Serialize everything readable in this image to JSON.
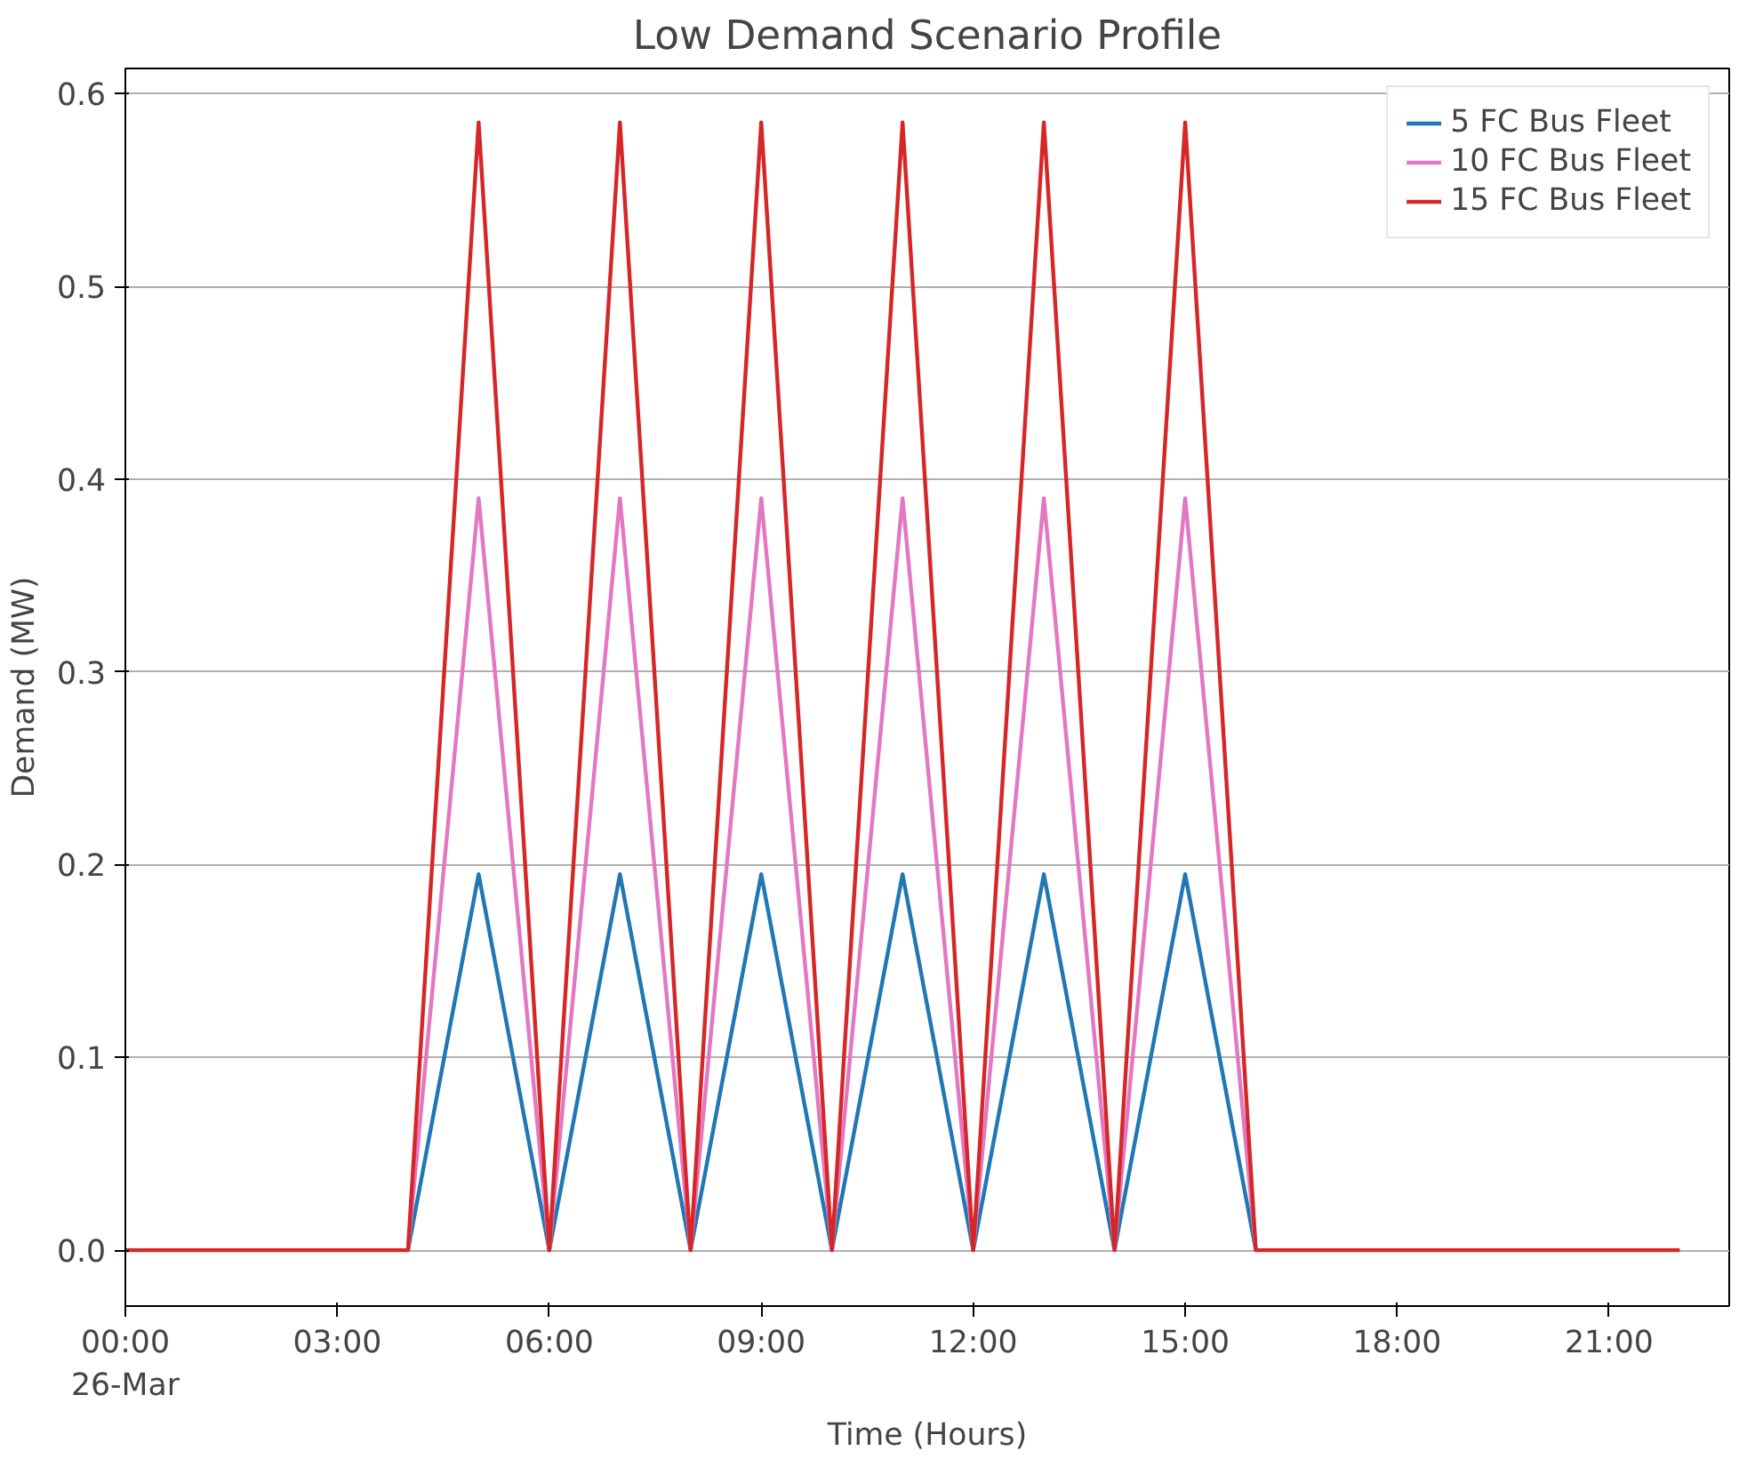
{
  "chart_data": {
    "type": "line",
    "title": "Low Demand Scenario Profile",
    "xlabel": "Time (Hours)",
    "ylabel": "Demand (MW)",
    "x": [
      0,
      1,
      2,
      3,
      4,
      5,
      6,
      7,
      8,
      9,
      10,
      11,
      12,
      13,
      14,
      15,
      16,
      17,
      18,
      19,
      20,
      21,
      22
    ],
    "series": [
      {
        "name": "5 FC Bus Fleet",
        "color": "#1f77b4",
        "values": [
          null,
          null,
          null,
          null,
          0,
          0.195,
          0,
          0.195,
          0,
          0.195,
          0,
          0.195,
          0,
          0.195,
          0,
          0.195,
          0,
          null,
          null,
          null,
          null,
          null,
          null
        ]
      },
      {
        "name": "10 FC Bus Fleet",
        "color": "#e377c2",
        "values": [
          null,
          null,
          null,
          null,
          0,
          0.39,
          0,
          0.39,
          0,
          0.39,
          0,
          0.39,
          0,
          0.39,
          0,
          0.39,
          0,
          null,
          null,
          null,
          null,
          null,
          null
        ]
      },
      {
        "name": "15 FC Bus Fleet",
        "color": "#d62728",
        "values": [
          0,
          0,
          0,
          0,
          0,
          0.585,
          0,
          0.585,
          0,
          0.585,
          0,
          0.585,
          0,
          0.585,
          0,
          0.585,
          0,
          0,
          0,
          0,
          0,
          0,
          0
        ]
      }
    ],
    "xlim": [
      0,
      22.7
    ],
    "ylim": [
      -0.029,
      0.613
    ],
    "xticks": [
      {
        "value": 0,
        "label": "00:00\n26-Mar"
      },
      {
        "value": 3,
        "label": "03:00"
      },
      {
        "value": 6,
        "label": "06:00"
      },
      {
        "value": 9,
        "label": "09:00"
      },
      {
        "value": 12,
        "label": "12:00"
      },
      {
        "value": 15,
        "label": "15:00"
      },
      {
        "value": 18,
        "label": "18:00"
      },
      {
        "value": 21,
        "label": "21:00"
      }
    ],
    "yticks": [
      {
        "value": 0,
        "label": "0.0"
      },
      {
        "value": 0.1,
        "label": "0.1"
      },
      {
        "value": 0.2,
        "label": "0.2"
      },
      {
        "value": 0.3,
        "label": "0.3"
      },
      {
        "value": 0.4,
        "label": "0.4"
      },
      {
        "value": 0.5,
        "label": "0.5"
      },
      {
        "value": 0.6,
        "label": "0.6"
      }
    ],
    "grid": "y",
    "legend": "top right",
    "line_style": "solid",
    "marker": "none"
  }
}
